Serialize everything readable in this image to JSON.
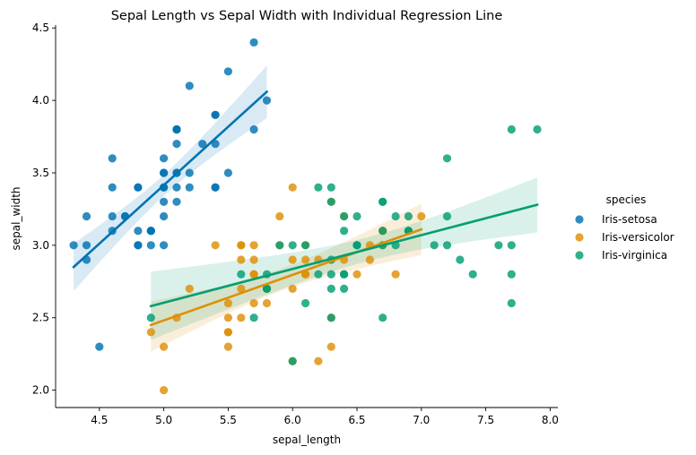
{
  "chart_data": {
    "type": "scatter",
    "title": "Sepal Length vs Sepal Width with Individual Regression Line",
    "xlabel": "sepal_length",
    "ylabel": "sepal_width",
    "xlim": [
      4.16,
      8.06
    ],
    "ylim": [
      1.88,
      4.52
    ],
    "xticks": [
      4.5,
      5.0,
      5.5,
      6.0,
      6.5,
      7.0,
      7.5,
      8.0
    ],
    "xtick_labels": [
      "4.5",
      "5.0",
      "5.5",
      "6.0",
      "6.5",
      "7.0",
      "7.5",
      "8.0"
    ],
    "yticks": [
      2.0,
      2.5,
      3.0,
      3.5,
      4.0,
      4.5
    ],
    "ytick_labels": [
      "2.0",
      "2.5",
      "3.0",
      "3.5",
      "4.0",
      "4.5"
    ],
    "grid": false,
    "legend": {
      "title": "species",
      "placement": "right"
    },
    "series": [
      {
        "name": "Iris-setosa",
        "color": "#0173b2",
        "points": [
          [
            5.1,
            3.5
          ],
          [
            4.9,
            3.0
          ],
          [
            4.7,
            3.2
          ],
          [
            4.6,
            3.1
          ],
          [
            5.0,
            3.6
          ],
          [
            5.4,
            3.9
          ],
          [
            4.6,
            3.4
          ],
          [
            5.0,
            3.4
          ],
          [
            4.4,
            2.9
          ],
          [
            4.9,
            3.1
          ],
          [
            5.4,
            3.7
          ],
          [
            4.8,
            3.4
          ],
          [
            4.8,
            3.0
          ],
          [
            4.3,
            3.0
          ],
          [
            5.8,
            4.0
          ],
          [
            5.7,
            4.4
          ],
          [
            5.4,
            3.9
          ],
          [
            5.1,
            3.5
          ],
          [
            5.7,
            3.8
          ],
          [
            5.1,
            3.8
          ],
          [
            5.4,
            3.4
          ],
          [
            5.1,
            3.7
          ],
          [
            4.6,
            3.6
          ],
          [
            5.1,
            3.3
          ],
          [
            4.8,
            3.4
          ],
          [
            5.0,
            3.0
          ],
          [
            5.0,
            3.4
          ],
          [
            5.2,
            3.5
          ],
          [
            5.2,
            3.4
          ],
          [
            4.7,
            3.2
          ],
          [
            4.8,
            3.1
          ],
          [
            5.4,
            3.4
          ],
          [
            5.2,
            4.1
          ],
          [
            5.5,
            4.2
          ],
          [
            4.9,
            3.1
          ],
          [
            5.0,
            3.2
          ],
          [
            5.5,
            3.5
          ],
          [
            4.9,
            3.1
          ],
          [
            4.4,
            3.0
          ],
          [
            5.1,
            3.4
          ],
          [
            5.0,
            3.5
          ],
          [
            4.5,
            2.3
          ],
          [
            4.4,
            3.2
          ],
          [
            5.0,
            3.5
          ],
          [
            5.1,
            3.8
          ],
          [
            4.8,
            3.0
          ],
          [
            5.1,
            3.8
          ],
          [
            4.6,
            3.2
          ],
          [
            5.3,
            3.7
          ],
          [
            5.0,
            3.3
          ]
        ],
        "regression": {
          "x_range": [
            4.3,
            5.8
          ],
          "y_range": [
            2.85,
            4.06
          ]
        }
      },
      {
        "name": "Iris-versicolor",
        "color": "#de8f05",
        "points": [
          [
            7.0,
            3.2
          ],
          [
            6.4,
            3.2
          ],
          [
            6.9,
            3.1
          ],
          [
            5.5,
            2.3
          ],
          [
            6.5,
            2.8
          ],
          [
            5.7,
            2.8
          ],
          [
            6.3,
            3.3
          ],
          [
            4.9,
            2.4
          ],
          [
            6.6,
            2.9
          ],
          [
            5.2,
            2.7
          ],
          [
            5.0,
            2.0
          ],
          [
            5.9,
            3.0
          ],
          [
            6.0,
            2.2
          ],
          [
            6.1,
            2.9
          ],
          [
            5.6,
            2.9
          ],
          [
            6.7,
            3.1
          ],
          [
            5.6,
            3.0
          ],
          [
            5.8,
            2.7
          ],
          [
            6.2,
            2.2
          ],
          [
            5.6,
            2.5
          ],
          [
            5.9,
            3.2
          ],
          [
            6.1,
            2.8
          ],
          [
            6.3,
            2.5
          ],
          [
            6.1,
            2.8
          ],
          [
            6.4,
            2.9
          ],
          [
            6.6,
            3.0
          ],
          [
            6.8,
            2.8
          ],
          [
            6.7,
            3.0
          ],
          [
            6.0,
            2.9
          ],
          [
            5.7,
            2.6
          ],
          [
            5.5,
            2.4
          ],
          [
            5.5,
            2.4
          ],
          [
            5.8,
            2.7
          ],
          [
            6.0,
            2.7
          ],
          [
            5.4,
            3.0
          ],
          [
            6.0,
            3.4
          ],
          [
            6.7,
            3.1
          ],
          [
            6.3,
            2.3
          ],
          [
            5.6,
            3.0
          ],
          [
            5.5,
            2.5
          ],
          [
            5.5,
            2.6
          ],
          [
            6.1,
            3.0
          ],
          [
            5.8,
            2.6
          ],
          [
            5.0,
            2.3
          ],
          [
            5.6,
            2.7
          ],
          [
            5.7,
            3.0
          ],
          [
            5.7,
            2.9
          ],
          [
            6.2,
            2.9
          ],
          [
            5.1,
            2.5
          ],
          [
            5.7,
            2.8
          ]
        ],
        "regression": {
          "x_range": [
            4.9,
            7.0
          ],
          "y_range": [
            2.45,
            3.11
          ]
        }
      },
      {
        "name": "Iris-virginica",
        "color": "#029e73",
        "points": [
          [
            6.3,
            3.3
          ],
          [
            5.8,
            2.7
          ],
          [
            7.1,
            3.0
          ],
          [
            6.3,
            2.9
          ],
          [
            6.5,
            3.0
          ],
          [
            7.6,
            3.0
          ],
          [
            4.9,
            2.5
          ],
          [
            7.3,
            2.9
          ],
          [
            6.7,
            2.5
          ],
          [
            7.2,
            3.6
          ],
          [
            6.5,
            3.2
          ],
          [
            6.4,
            2.7
          ],
          [
            6.8,
            3.0
          ],
          [
            5.7,
            2.5
          ],
          [
            5.8,
            2.8
          ],
          [
            6.4,
            3.2
          ],
          [
            6.5,
            3.0
          ],
          [
            7.7,
            3.8
          ],
          [
            7.7,
            2.6
          ],
          [
            6.0,
            2.2
          ],
          [
            6.9,
            3.2
          ],
          [
            5.6,
            2.8
          ],
          [
            7.7,
            2.8
          ],
          [
            6.3,
            2.7
          ],
          [
            6.7,
            3.3
          ],
          [
            7.2,
            3.2
          ],
          [
            6.2,
            2.8
          ],
          [
            6.1,
            3.0
          ],
          [
            6.4,
            2.8
          ],
          [
            7.2,
            3.0
          ],
          [
            7.4,
            2.8
          ],
          [
            7.9,
            3.8
          ],
          [
            6.4,
            2.8
          ],
          [
            6.3,
            2.8
          ],
          [
            6.1,
            2.6
          ],
          [
            7.7,
            3.0
          ],
          [
            6.3,
            3.4
          ],
          [
            6.4,
            3.1
          ],
          [
            6.0,
            3.0
          ],
          [
            6.9,
            3.1
          ],
          [
            6.7,
            3.1
          ],
          [
            6.9,
            3.1
          ],
          [
            5.8,
            2.7
          ],
          [
            6.8,
            3.2
          ],
          [
            6.7,
            3.3
          ],
          [
            6.7,
            3.0
          ],
          [
            6.3,
            2.5
          ],
          [
            6.5,
            3.0
          ],
          [
            6.2,
            3.4
          ],
          [
            5.9,
            3.0
          ]
        ],
        "regression": {
          "x_range": [
            4.9,
            7.9
          ],
          "y_range": [
            2.58,
            3.28
          ]
        }
      }
    ]
  }
}
